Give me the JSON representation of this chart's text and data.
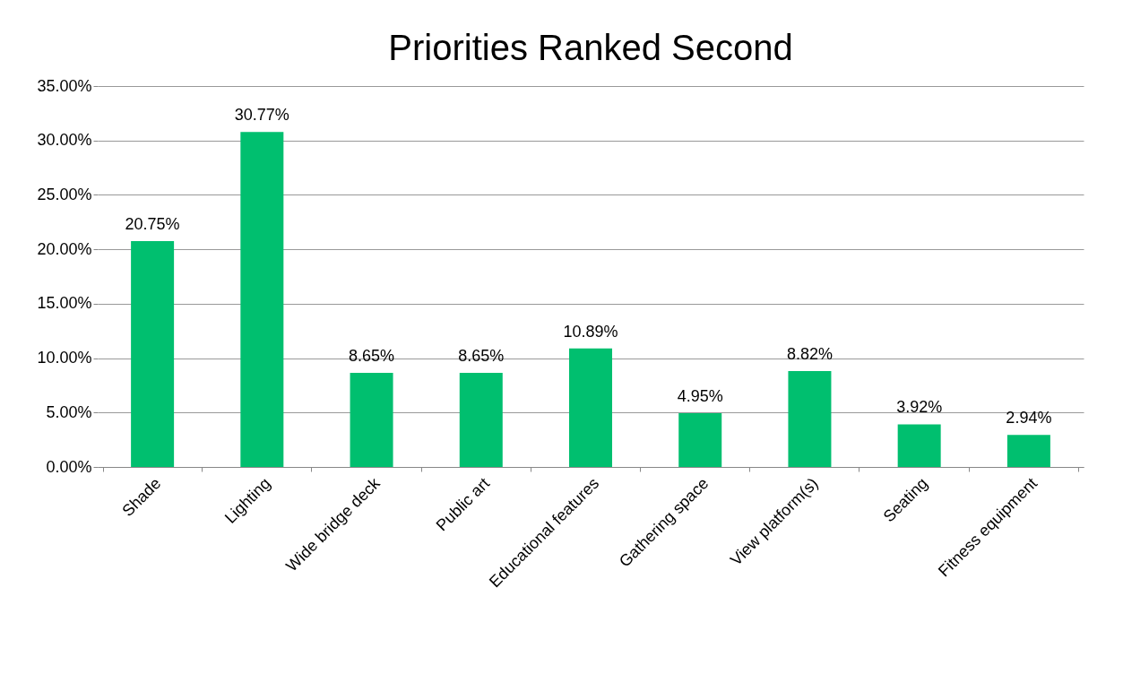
{
  "chart_data": {
    "type": "bar",
    "title": "Priorities Ranked Second",
    "categories": [
      "Shade",
      "Lighting",
      "Wide bridge deck",
      "Public art",
      "Educational features",
      "Gathering space",
      "View platform(s)",
      "Seating",
      "Fitness equipment"
    ],
    "values": [
      20.75,
      30.77,
      8.65,
      8.65,
      10.89,
      4.95,
      8.82,
      3.92,
      2.94
    ],
    "value_labels": [
      "20.75%",
      "30.77%",
      "8.65%",
      "8.65%",
      "10.89%",
      "4.95%",
      "8.82%",
      "3.92%",
      "2.94%"
    ],
    "color": "#00bf6f",
    "ylim": [
      0,
      35
    ],
    "yticks": [
      {
        "value": 0,
        "label": "0.00%"
      },
      {
        "value": 5,
        "label": "5.00%"
      },
      {
        "value": 10,
        "label": "10.00%"
      },
      {
        "value": 15,
        "label": "15.00%"
      },
      {
        "value": 20,
        "label": "20.00%"
      },
      {
        "value": 25,
        "label": "25.00%"
      },
      {
        "value": 30,
        "label": "30.00%"
      },
      {
        "value": 35,
        "label": "35.00%"
      }
    ],
    "grid": "y"
  }
}
